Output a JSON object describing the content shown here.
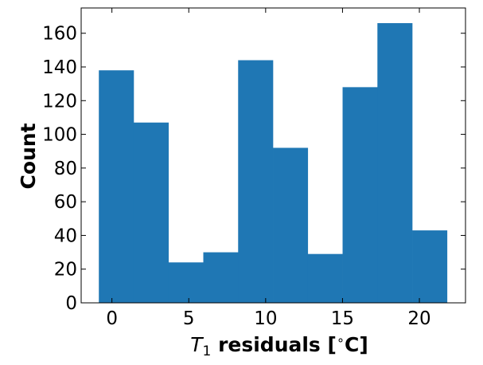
{
  "chart_data": {
    "type": "bar",
    "subtype": "histogram",
    "color": "#1f77b4",
    "bin_edges": [
      -0.85,
      1.415,
      3.68,
      5.945,
      8.21,
      10.475,
      12.74,
      15.005,
      17.27,
      19.535,
      21.8
    ],
    "values": [
      138,
      107,
      24,
      30,
      144,
      92,
      29,
      128,
      166,
      43
    ],
    "title": "",
    "xlabel_base": "T",
    "xlabel_sub": "1",
    "xlabel_rest": " residuals [",
    "xlabel_deg": "∘",
    "xlabel_unit": "C]",
    "ylabel": "Count",
    "xlim": [
      -2,
      23
    ],
    "ylim": [
      0,
      175
    ],
    "xticks": [
      0,
      5,
      10,
      15,
      20
    ],
    "yticks": [
      0,
      20,
      40,
      60,
      80,
      100,
      120,
      140,
      160
    ],
    "grid": false,
    "ticks_direction": "in",
    "ticks_all_sides": true
  }
}
